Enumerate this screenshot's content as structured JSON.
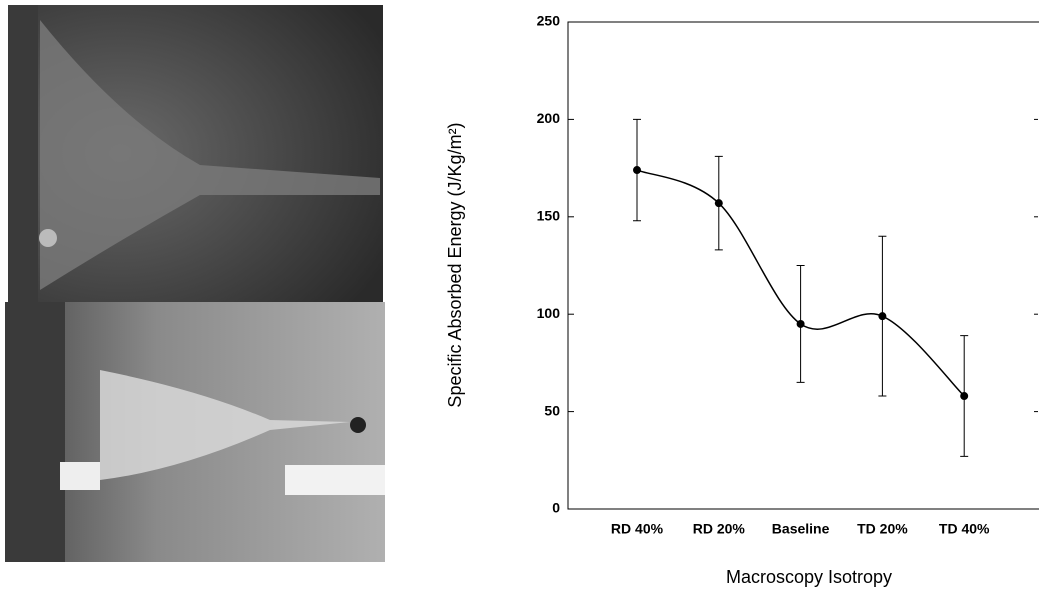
{
  "chart_data": {
    "type": "line",
    "categories": [
      "RD 40%",
      "RD 20%",
      "Baseline",
      "TD 20%",
      "TD 40%"
    ],
    "values": [
      174,
      157,
      95,
      99,
      58
    ],
    "errors": [
      26,
      24,
      30,
      41,
      31
    ],
    "color": "#000000",
    "ylim": [
      0,
      250
    ],
    "yticks": [
      0,
      50,
      100,
      150,
      200,
      250
    ],
    "xlabel": "Macroscopy Isotropy",
    "ylabel": "Specific Absorbed Energy (J/Kg/m²)"
  }
}
